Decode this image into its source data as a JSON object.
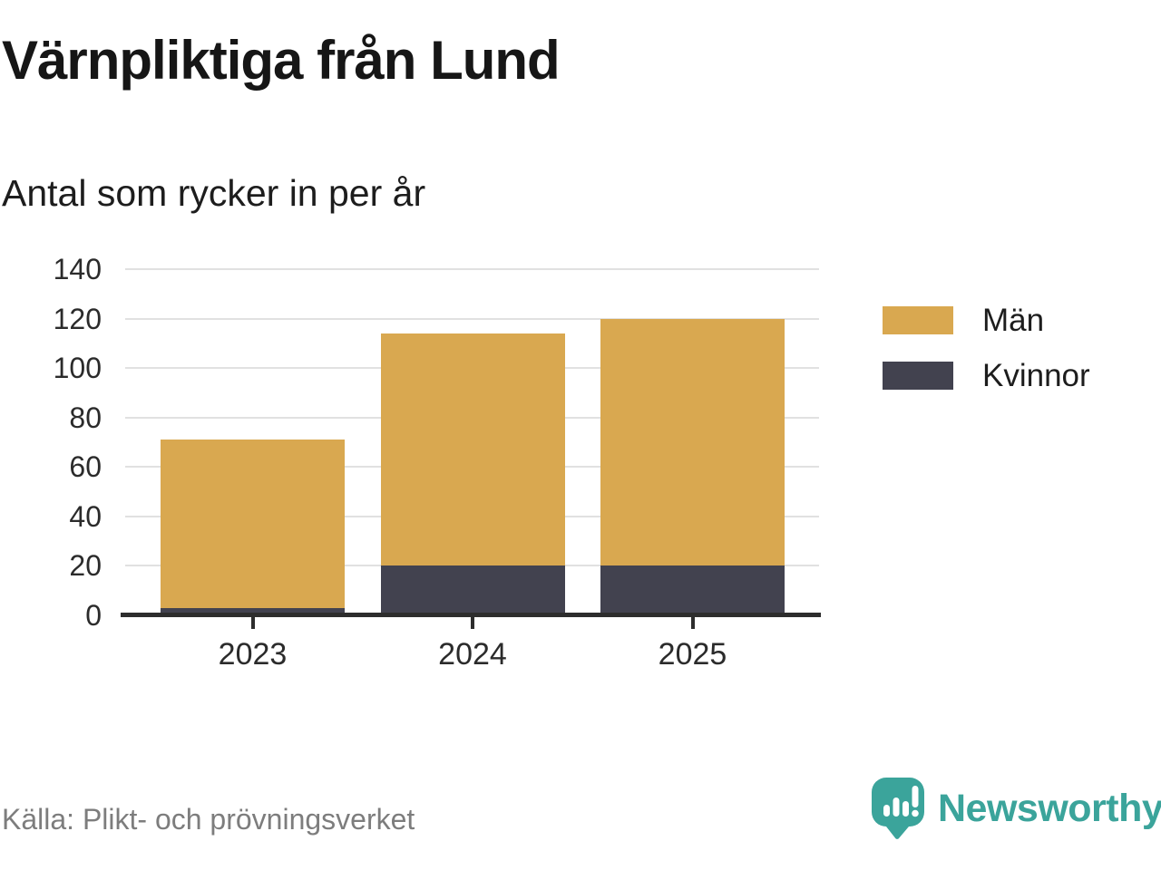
{
  "header": {
    "title": "Värnpliktiga från Lund",
    "subtitle": "Antal som rycker in per år"
  },
  "chart_data": {
    "type": "bar",
    "stacked": true,
    "categories": [
      "2023",
      "2024",
      "2025"
    ],
    "series": [
      {
        "name": "Män",
        "color": "#D9A850",
        "values": [
          68,
          94,
          100
        ]
      },
      {
        "name": "Kvinnor",
        "color": "#42424F",
        "values": [
          3,
          20,
          20
        ]
      }
    ],
    "totals": [
      71,
      114,
      120
    ],
    "title": "Värnpliktiga från Lund",
    "subtitle": "Antal som rycker in per år",
    "xlabel": "",
    "ylabel": "",
    "ylim": [
      0,
      140
    ],
    "yticks": [
      0,
      20,
      40,
      60,
      80,
      100,
      120,
      140
    ],
    "grid": true,
    "gridline_color": "#e1e1e1",
    "axis_color": "#2d2d2d",
    "legend_position": "right"
  },
  "legend": {
    "items": [
      {
        "label": "Män",
        "color": "#D9A850"
      },
      {
        "label": "Kvinnor",
        "color": "#42424F"
      }
    ]
  },
  "footer": {
    "source": "Källa: Plikt- och prövningsverket",
    "brand": "Newsworthy",
    "brand_color": "#3BA49B",
    "brand_icon": "bar-chart-speech-bubble-icon"
  }
}
